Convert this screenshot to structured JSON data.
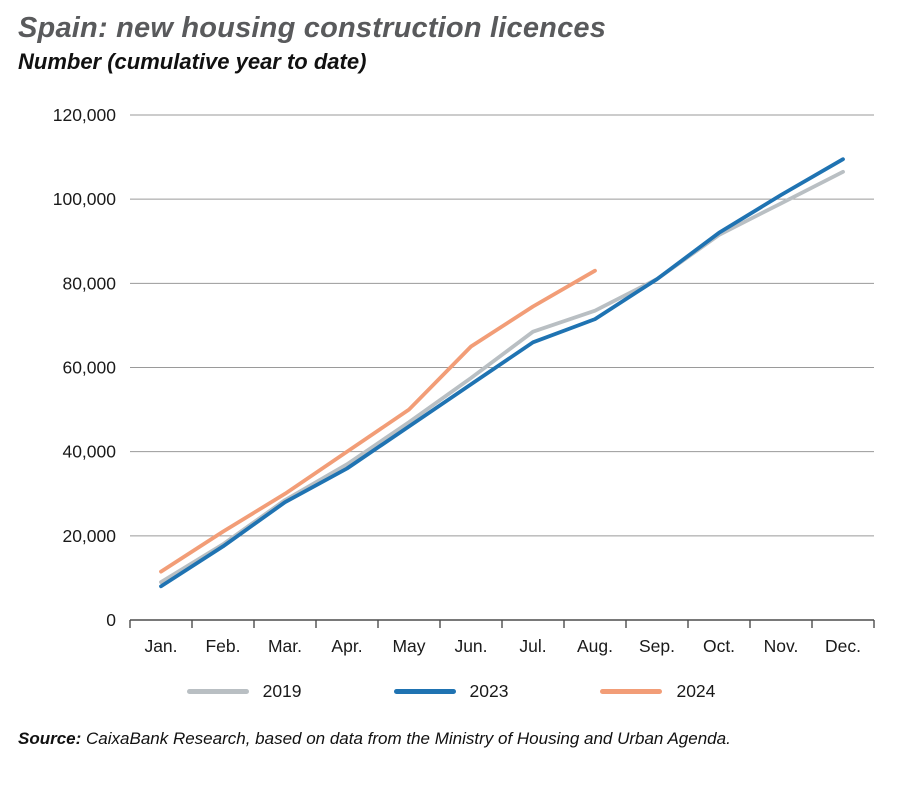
{
  "header": {
    "title": "Spain: new housing construction licences",
    "subtitle": "Number (cumulative year to date)"
  },
  "chart_data": {
    "type": "line",
    "title": "Spain: new housing construction licences",
    "subtitle": "Number (cumulative year to date)",
    "categories": [
      "Jan.",
      "Feb.",
      "Mar.",
      "Apr.",
      "May",
      "Jun.",
      "Jul.",
      "Aug.",
      "Sep.",
      "Oct.",
      "Nov.",
      "Dec."
    ],
    "series": [
      {
        "name": "2019",
        "color": "#b9bfc3",
        "values": [
          9000,
          18000,
          28500,
          37000,
          47000,
          57500,
          68500,
          73500,
          81000,
          91500,
          99000,
          106500
        ]
      },
      {
        "name": "2023",
        "color": "#1f73b2",
        "values": [
          8000,
          17500,
          28000,
          36000,
          46000,
          56000,
          66000,
          71500,
          81000,
          92000,
          101000,
          109500
        ]
      },
      {
        "name": "2024",
        "color": "#f29d77",
        "values": [
          11500,
          21000,
          30000,
          40000,
          50000,
          65000,
          74500,
          83000,
          null,
          null,
          null,
          null
        ]
      }
    ],
    "ylim": [
      0,
      120000
    ],
    "ytick_step": 20000,
    "yticks_labels": [
      "0",
      "20,000",
      "40,000",
      "60,000",
      "80,000",
      "100,000",
      "120,000"
    ],
    "grid": "horizontal",
    "legend_position": "bottom"
  },
  "footer": {
    "source_label": "Source:",
    "source_text": " CaixaBank Research, based on data from the Ministry of Housing and Urban Agenda."
  }
}
